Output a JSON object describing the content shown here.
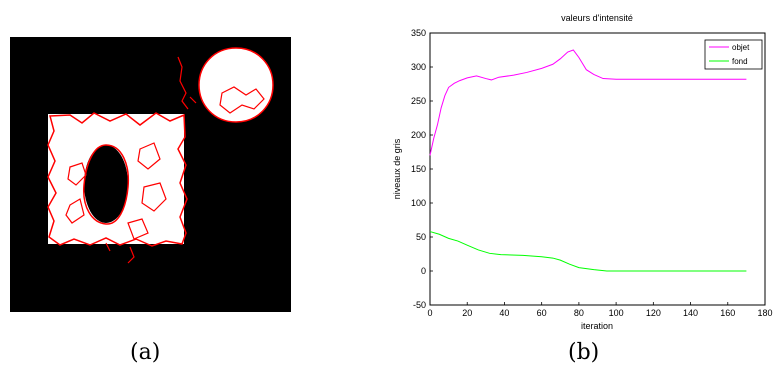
{
  "figure": {
    "caption_a": "(a)",
    "caption_b": "(b)"
  },
  "segmentation_panel": {
    "background_color": "#000000",
    "region_color": "#ffffff",
    "contour_color": "#ff0000"
  },
  "chart_data": {
    "type": "line",
    "title": "valeurs d'intensité",
    "xlabel": "iteration",
    "ylabel": "niveaux de gris",
    "xlim": [
      0,
      180
    ],
    "ylim": [
      -50,
      350
    ],
    "xticks": [
      0,
      20,
      40,
      60,
      80,
      100,
      120,
      140,
      160,
      180
    ],
    "yticks": [
      -50,
      0,
      50,
      100,
      150,
      200,
      250,
      300,
      350
    ],
    "legend_position": "top-right",
    "grid": false,
    "series": [
      {
        "name": "objet",
        "color": "#ff00ff",
        "points": [
          [
            0,
            170
          ],
          [
            2,
            195
          ],
          [
            4,
            215
          ],
          [
            6,
            240
          ],
          [
            8,
            258
          ],
          [
            10,
            270
          ],
          [
            13,
            276
          ],
          [
            16,
            280
          ],
          [
            20,
            284
          ],
          [
            25,
            287
          ],
          [
            30,
            283
          ],
          [
            33,
            281
          ],
          [
            37,
            285
          ],
          [
            45,
            288
          ],
          [
            52,
            292
          ],
          [
            60,
            298
          ],
          [
            66,
            304
          ],
          [
            70,
            312
          ],
          [
            74,
            322
          ],
          [
            77,
            325
          ],
          [
            80,
            314
          ],
          [
            84,
            296
          ],
          [
            88,
            289
          ],
          [
            93,
            283
          ],
          [
            100,
            282
          ],
          [
            120,
            282
          ],
          [
            150,
            282
          ],
          [
            170,
            282
          ]
        ]
      },
      {
        "name": "fond",
        "color": "#00ff00",
        "points": [
          [
            0,
            58
          ],
          [
            5,
            54
          ],
          [
            10,
            48
          ],
          [
            15,
            44
          ],
          [
            20,
            38
          ],
          [
            26,
            31
          ],
          [
            32,
            26
          ],
          [
            38,
            24
          ],
          [
            50,
            23
          ],
          [
            60,
            21
          ],
          [
            66,
            19
          ],
          [
            70,
            16
          ],
          [
            75,
            10
          ],
          [
            80,
            5
          ],
          [
            88,
            2
          ],
          [
            95,
            0
          ],
          [
            120,
            0
          ],
          [
            150,
            0
          ],
          [
            170,
            0
          ]
        ]
      }
    ]
  }
}
